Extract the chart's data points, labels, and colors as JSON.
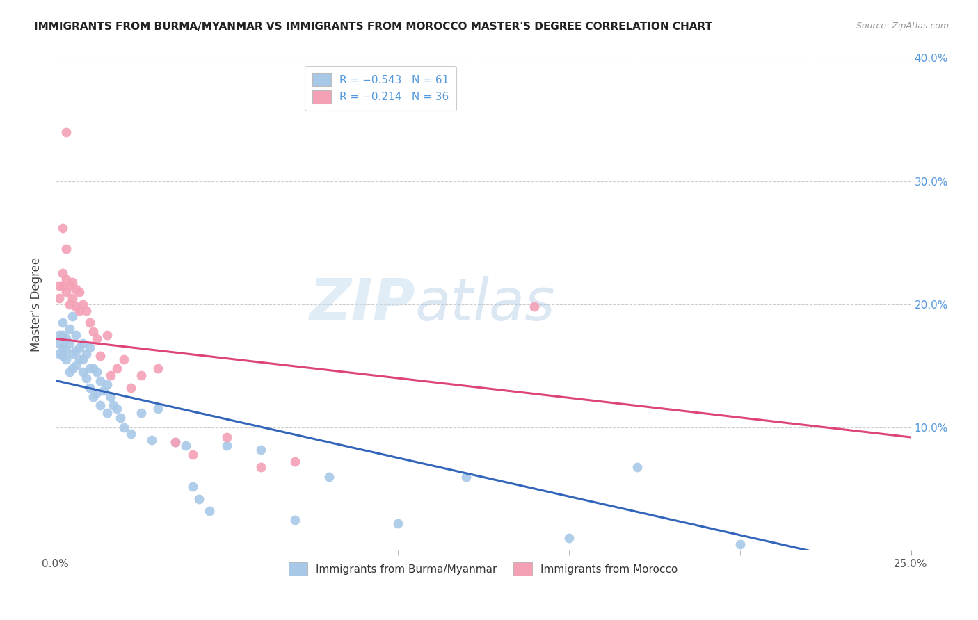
{
  "title": "IMMIGRANTS FROM BURMA/MYANMAR VS IMMIGRANTS FROM MOROCCO MASTER'S DEGREE CORRELATION CHART",
  "source": "Source: ZipAtlas.com",
  "ylabel": "Master's Degree",
  "xlim": [
    0.0,
    0.25
  ],
  "ylim": [
    0.0,
    0.4
  ],
  "legend_blue_label": "R = −0.543   N = 61",
  "legend_pink_label": "R = −0.214   N = 36",
  "blue_color": "#a8c8e8",
  "pink_color": "#f4a0b5",
  "trendline_blue": "#3366bb",
  "trendline_pink": "#dd4477",
  "title_color": "#222222",
  "right_axis_color": "#5599dd",
  "bottom_legend_blue": "Immigrants from Burma/Myanmar",
  "bottom_legend_pink": "Immigrants from Morocco",
  "watermark_zip": "ZIP",
  "watermark_atlas": "atlas",
  "grid_color": "#cccccc",
  "background_color": "#ffffff",
  "blue_trendline_x": [
    0.0,
    0.22
  ],
  "blue_trendline_y": [
    0.138,
    0.0
  ],
  "pink_trendline_x": [
    0.0,
    0.25
  ],
  "pink_trendline_y": [
    0.172,
    0.092
  ],
  "blue_scatter_x": [
    0.001,
    0.001,
    0.001,
    0.002,
    0.002,
    0.002,
    0.002,
    0.003,
    0.003,
    0.003,
    0.004,
    0.004,
    0.004,
    0.005,
    0.005,
    0.005,
    0.006,
    0.006,
    0.006,
    0.007,
    0.007,
    0.008,
    0.008,
    0.008,
    0.009,
    0.009,
    0.01,
    0.01,
    0.01,
    0.011,
    0.011,
    0.012,
    0.012,
    0.013,
    0.013,
    0.014,
    0.015,
    0.015,
    0.016,
    0.017,
    0.018,
    0.019,
    0.02,
    0.022,
    0.025,
    0.028,
    0.03,
    0.035,
    0.038,
    0.04,
    0.042,
    0.045,
    0.05,
    0.06,
    0.07,
    0.08,
    0.1,
    0.12,
    0.15,
    0.17,
    0.2
  ],
  "blue_scatter_y": [
    0.175,
    0.168,
    0.16,
    0.185,
    0.175,
    0.165,
    0.158,
    0.172,
    0.163,
    0.155,
    0.18,
    0.168,
    0.145,
    0.19,
    0.16,
    0.148,
    0.175,
    0.162,
    0.15,
    0.165,
    0.155,
    0.168,
    0.155,
    0.145,
    0.16,
    0.14,
    0.165,
    0.148,
    0.132,
    0.148,
    0.125,
    0.145,
    0.128,
    0.138,
    0.118,
    0.13,
    0.135,
    0.112,
    0.125,
    0.118,
    0.115,
    0.108,
    0.1,
    0.095,
    0.112,
    0.09,
    0.115,
    0.088,
    0.085,
    0.052,
    0.042,
    0.032,
    0.085,
    0.082,
    0.025,
    0.06,
    0.022,
    0.06,
    0.01,
    0.068,
    0.005
  ],
  "pink_scatter_x": [
    0.001,
    0.001,
    0.002,
    0.002,
    0.003,
    0.003,
    0.004,
    0.004,
    0.005,
    0.005,
    0.006,
    0.006,
    0.007,
    0.007,
    0.008,
    0.009,
    0.01,
    0.011,
    0.012,
    0.013,
    0.015,
    0.016,
    0.018,
    0.02,
    0.022,
    0.025,
    0.03,
    0.035,
    0.04,
    0.05,
    0.06,
    0.07,
    0.002,
    0.003,
    0.14,
    0.003
  ],
  "pink_scatter_y": [
    0.215,
    0.205,
    0.225,
    0.215,
    0.22,
    0.21,
    0.215,
    0.2,
    0.218,
    0.205,
    0.212,
    0.198,
    0.21,
    0.195,
    0.2,
    0.195,
    0.185,
    0.178,
    0.172,
    0.158,
    0.175,
    0.142,
    0.148,
    0.155,
    0.132,
    0.142,
    0.148,
    0.088,
    0.078,
    0.092,
    0.068,
    0.072,
    0.262,
    0.245,
    0.198,
    0.34
  ],
  "xtick_minor": [
    0.05,
    0.1,
    0.15,
    0.2
  ]
}
